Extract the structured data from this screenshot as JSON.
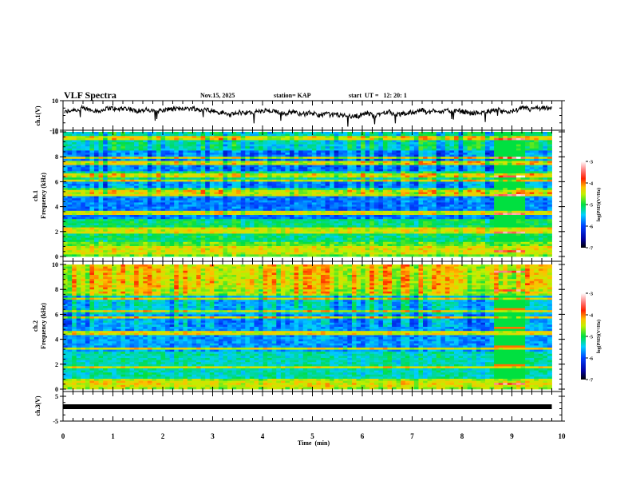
{
  "header": {
    "title": "VLF Spectra",
    "date": "Nov.15, 2025",
    "station": "station= KAP",
    "start": "start  UT =   12: 20: 1"
  },
  "chart_data": [
    {
      "type": "line",
      "name": "ch1-waveform",
      "ylabel": "ch.1(V)",
      "ylim": [
        -10,
        10
      ],
      "yticks": [
        "10",
        "-10"
      ],
      "xlim": [
        0,
        10
      ],
      "data_end_min": 9.8,
      "description_series": "noisy waveform oscillating roughly between -4 and 6 V"
    },
    {
      "type": "heatmap",
      "name": "ch1-spectrogram",
      "ylabel_line1": "ch.1",
      "ylabel_line2": "Frequency (kHz)",
      "ylim": [
        0,
        10
      ],
      "yticks": [
        "0",
        "2",
        "4",
        "6",
        "8",
        "10"
      ],
      "xlim": [
        0,
        10
      ],
      "data_end_min": 9.8,
      "colorbar": {
        "label": "log(PSD)(V²/Hz)",
        "range": [
          -7,
          -3
        ],
        "ticks": [
          "-3",
          "-4",
          "-5",
          "-6",
          "-7"
        ]
      },
      "burst_window_min": [
        8.7,
        9.2
      ]
    },
    {
      "type": "heatmap",
      "name": "ch2-spectrogram",
      "ylabel_line1": "ch.2",
      "ylabel_line2": "Frequency (kHz)",
      "ylim": [
        0,
        10
      ],
      "yticks": [
        "0",
        "2",
        "4",
        "6",
        "8",
        "10"
      ],
      "xlim": [
        0,
        10
      ],
      "data_end_min": 9.8,
      "colorbar": {
        "label": "log(PSD)(V²/Hz)",
        "range": [
          -7,
          -3
        ],
        "ticks": [
          "-3",
          "-4",
          "-5",
          "-6",
          "-7"
        ]
      },
      "burst_window_min": [
        8.7,
        9.2
      ]
    },
    {
      "type": "line",
      "name": "ch3-waveform",
      "ylabel": "ch.3(V)",
      "ylim": [
        -5,
        5
      ],
      "yticks": [
        "5",
        "-5"
      ],
      "xlim": [
        0,
        10
      ],
      "data_end_min": 9.8,
      "constant_level_v": 0.8,
      "xlabel": "Time  (min)",
      "xticks": [
        "0",
        "1",
        "2",
        "3",
        "4",
        "5",
        "6",
        "7",
        "8",
        "9",
        "10"
      ]
    }
  ]
}
